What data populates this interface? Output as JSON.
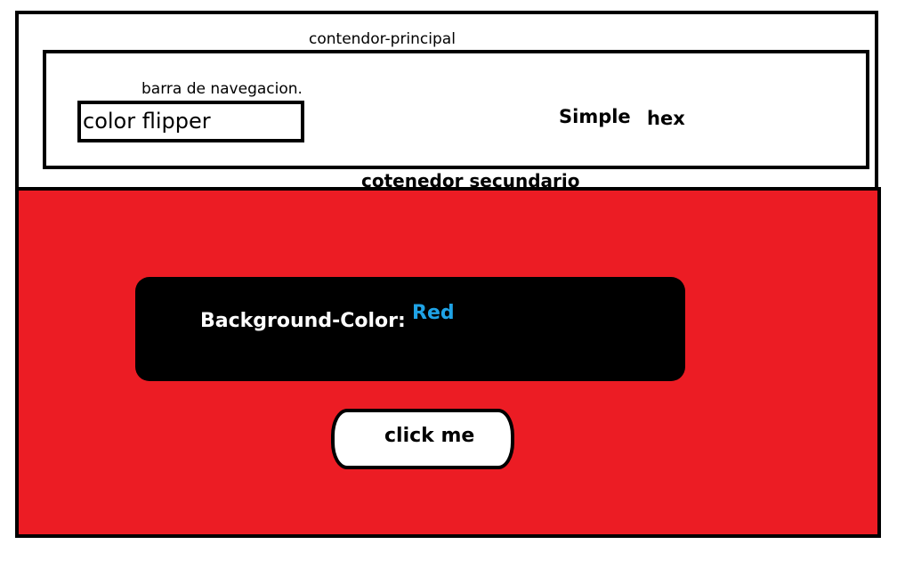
{
  "main_container": {
    "label": "contendor-principal"
  },
  "navbar": {
    "label": "barra de navegacion.",
    "brand": "color flipper",
    "links": [
      {
        "label": "Simple"
      },
      {
        "label": "hex"
      }
    ]
  },
  "secondary_container": {
    "label": "cotenedor secundario",
    "background_color": "#ec1c24"
  },
  "color_panel": {
    "label": "Background-Color:",
    "value": "Red",
    "value_color": "#1fa3e6"
  },
  "action": {
    "button_label": "click me"
  }
}
